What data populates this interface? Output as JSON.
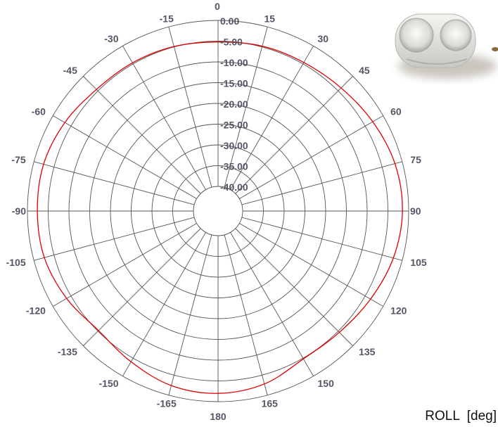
{
  "chart_data": {
    "type": "polar-line",
    "xlabel": "ROLL  [deg]",
    "angle_tick_labels": [
      "0",
      "15",
      "30",
      "45",
      "60",
      "75",
      "90",
      "105",
      "120",
      "135",
      "150",
      "165",
      "180",
      "-165",
      "-150",
      "-135",
      "-120",
      "-105",
      "-90",
      "-75",
      "-60",
      "-45",
      "-30",
      "-15"
    ],
    "radial_tick_labels": [
      "0.00",
      "-5.00",
      "-10.00",
      "-15.00",
      "-20.00",
      "-25.00",
      "-30.00",
      "-35.00",
      "-40.00"
    ],
    "rlim": [
      -40,
      0
    ],
    "grid": true,
    "series": [
      {
        "color": "#e00000",
        "points": [
          {
            "angle": 0,
            "value": -5.2
          },
          {
            "angle": 15,
            "value": -4.8
          },
          {
            "angle": 30,
            "value": -4.6
          },
          {
            "angle": 45,
            "value": -4.0
          },
          {
            "angle": 60,
            "value": -2.9
          },
          {
            "angle": 75,
            "value": -1.8
          },
          {
            "angle": 90,
            "value": -1.5
          },
          {
            "angle": 105,
            "value": -2.2
          },
          {
            "angle": 120,
            "value": -3.5
          },
          {
            "angle": 135,
            "value": -4.6
          },
          {
            "angle": 150,
            "value": -4.8
          },
          {
            "angle": 165,
            "value": -2.8
          },
          {
            "angle": 180,
            "value": -2.0
          },
          {
            "angle": -165,
            "value": -2.4
          },
          {
            "angle": -150,
            "value": -4.0
          },
          {
            "angle": -135,
            "value": -5.2
          },
          {
            "angle": -120,
            "value": -3.8
          },
          {
            "angle": -105,
            "value": -2.6
          },
          {
            "angle": -90,
            "value": -2.4
          },
          {
            "angle": -75,
            "value": -2.4
          },
          {
            "angle": -60,
            "value": -3.3
          },
          {
            "angle": -45,
            "value": -4.5
          },
          {
            "angle": -30,
            "value": -4.7
          },
          {
            "angle": -15,
            "value": -4.9
          }
        ]
      }
    ]
  }
}
